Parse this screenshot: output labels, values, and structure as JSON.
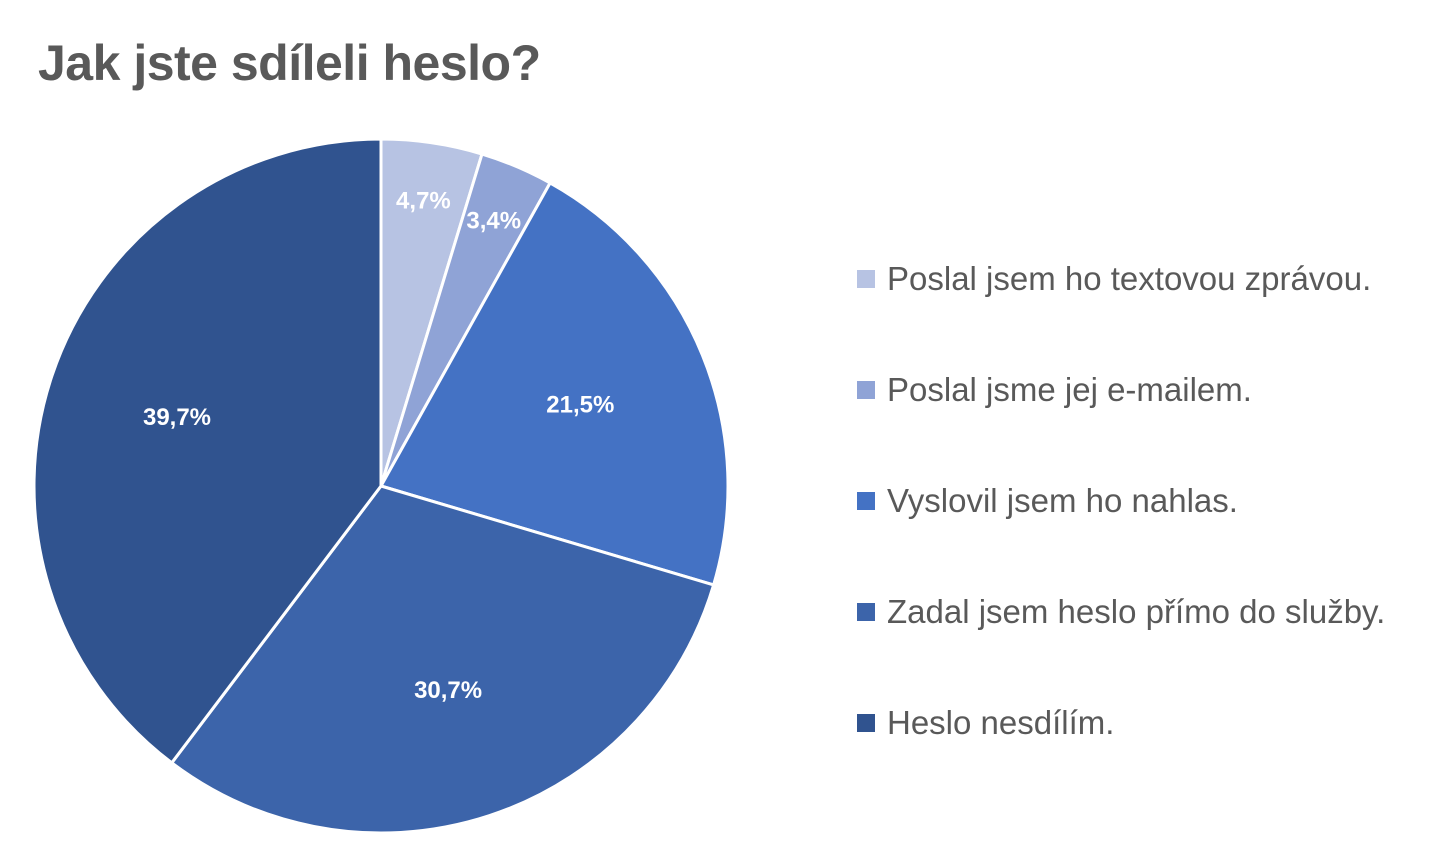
{
  "chart_data": {
    "type": "pie",
    "title": "Jak jste sdíleli heslo?",
    "legend_position": "right",
    "slices": [
      {
        "label": "Poslal jsem ho textovou zprávou.",
        "value": 4.7,
        "display": "4,7%",
        "color": "#b7c3e3"
      },
      {
        "label": "Poslal jsme jej e-mailem.",
        "value": 3.4,
        "display": "3,4%",
        "color": "#8fa3d6"
      },
      {
        "label": "Vyslovil jsem ho nahlas.",
        "value": 21.5,
        "display": "21,5%",
        "color": "#4472c4"
      },
      {
        "label": "Zadal jsem heslo přímo do služby.",
        "value": 30.7,
        "display": "30,7%",
        "color": "#3c64aa"
      },
      {
        "label": "Heslo nesdílím.",
        "value": 39.7,
        "display": "39,7%",
        "color": "#30538f"
      }
    ]
  }
}
